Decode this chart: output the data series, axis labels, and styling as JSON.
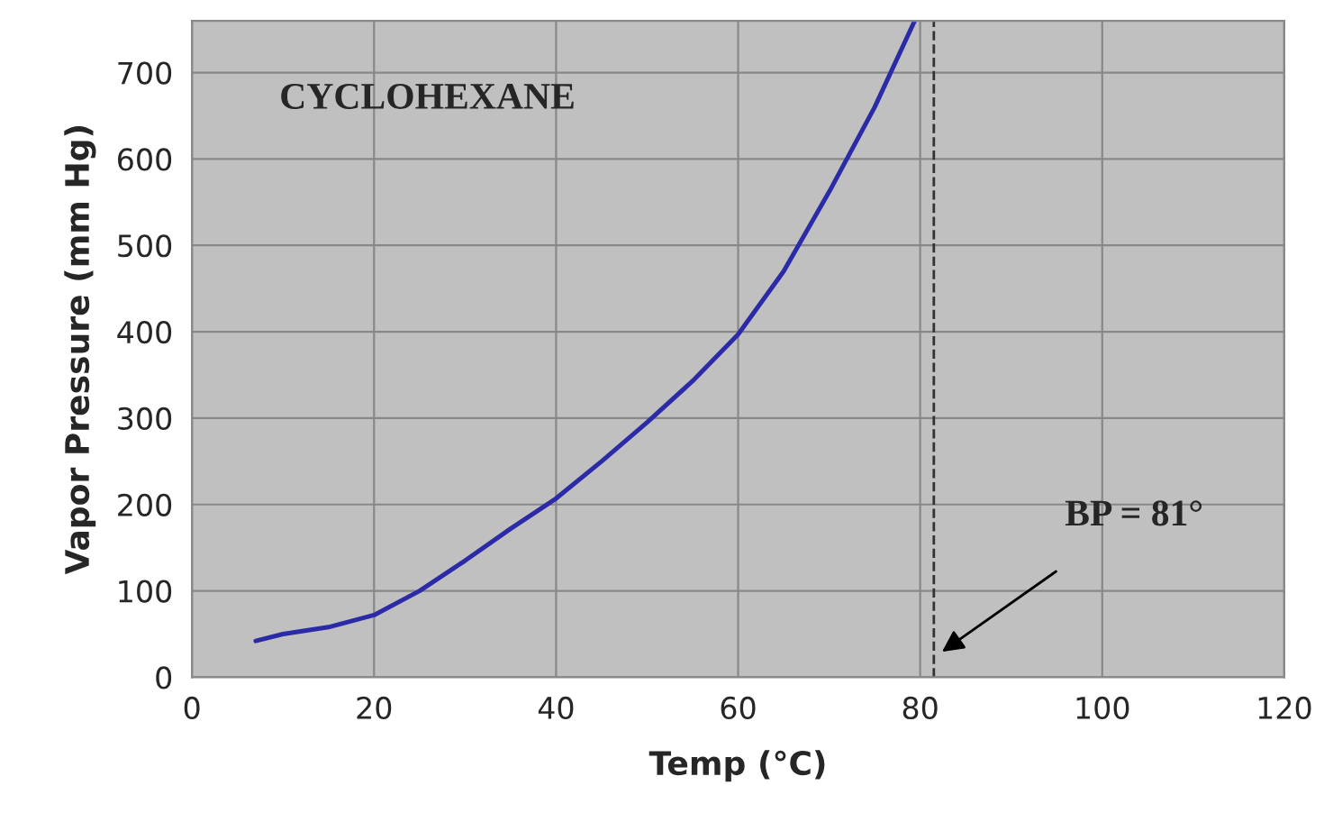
{
  "chart_data": {
    "type": "line",
    "xlabel": "Temp (°C)",
    "ylabel": "Vapor Pressure (mm Hg)",
    "x": [
      7,
      10,
      15,
      20,
      25,
      30,
      35,
      40,
      45,
      50,
      55,
      60,
      65,
      70,
      75,
      79.4
    ],
    "series": [
      {
        "color": "#2b2ba8",
        "values": [
          42,
          50,
          58,
          72,
          100,
          135,
          172,
          207,
          250,
          295,
          343,
          397,
          470,
          562,
          660,
          760
        ]
      }
    ],
    "xlim": [
      0,
      120
    ],
    "xticks": [
      0,
      20,
      40,
      60,
      80,
      100,
      120
    ],
    "ylim": [
      0,
      760
    ],
    "yticks": [
      0,
      100,
      200,
      300,
      400,
      500,
      600,
      700
    ],
    "grid": true,
    "marker": "none",
    "line_style": "solid",
    "ref_lines": [
      {
        "axis": "x",
        "value": 81.5,
        "line_style": "dashed",
        "color": "#333333",
        "label": "BP = 81°"
      }
    ],
    "annotations": [
      "CYCLOHEXANE"
    ]
  }
}
